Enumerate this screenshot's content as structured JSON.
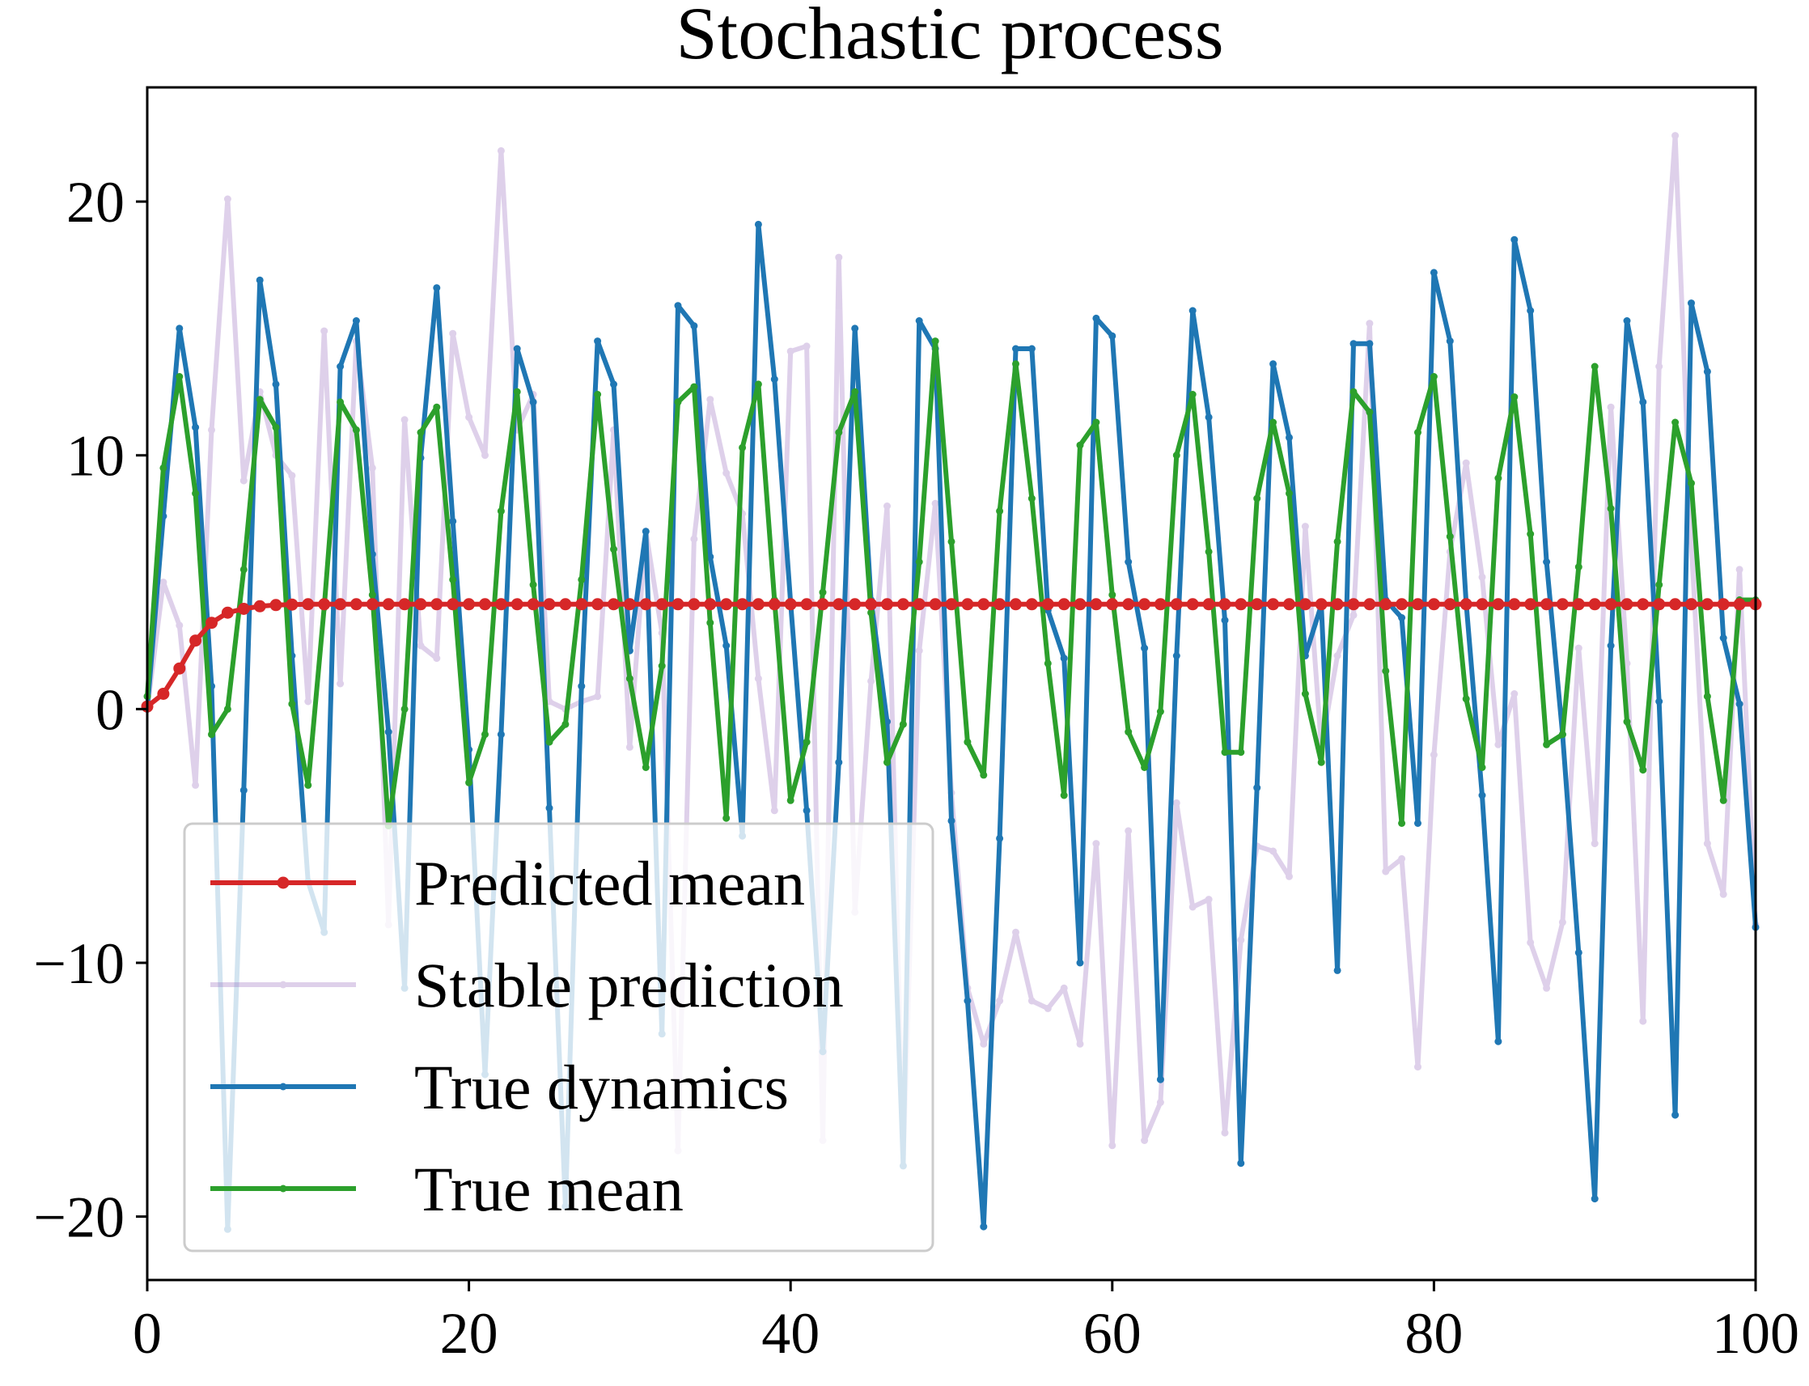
{
  "chart_data": {
    "type": "line",
    "title": "Stochastic process",
    "xlabel": "",
    "ylabel": "",
    "xlim": [
      0,
      100
    ],
    "ylim": [
      -22.5,
      24.5
    ],
    "x_ticks": [
      0,
      20,
      40,
      60,
      80,
      100
    ],
    "x_tick_labels": [
      "0",
      "20",
      "40",
      "60",
      "80",
      "100"
    ],
    "y_ticks": [
      20,
      10,
      0,
      -10,
      -20
    ],
    "y_tick_labels": [
      "20",
      "10",
      "0",
      "−10",
      "−20"
    ],
    "grid": false,
    "legend_position": "lower-left",
    "x": [
      0,
      1,
      2,
      3,
      4,
      5,
      6,
      7,
      8,
      9,
      10,
      11,
      12,
      13,
      14,
      15,
      16,
      17,
      18,
      19,
      20,
      21,
      22,
      23,
      24,
      25,
      26,
      27,
      28,
      29,
      30,
      31,
      32,
      33,
      34,
      35,
      36,
      37,
      38,
      39,
      40,
      41,
      42,
      43,
      44,
      45,
      46,
      47,
      48,
      49,
      50,
      51,
      52,
      53,
      54,
      55,
      56,
      57,
      58,
      59,
      60,
      61,
      62,
      63,
      64,
      65,
      66,
      67,
      68,
      69,
      70,
      71,
      72,
      73,
      74,
      75,
      76,
      77,
      78,
      79,
      80,
      81,
      82,
      83,
      84,
      85,
      86,
      87,
      88,
      89,
      90,
      91,
      92,
      93,
      94,
      95,
      96,
      97,
      98,
      99,
      100
    ],
    "series": [
      {
        "name": "Predicted mean",
        "color": "#d62728",
        "alpha": 1.0,
        "z": 4,
        "values": [
          0.1,
          0.6,
          1.6,
          2.7,
          3.4,
          3.8,
          3.95,
          4.05,
          4.1,
          4.12,
          4.13,
          4.13,
          4.13,
          4.13,
          4.13,
          4.13,
          4.13,
          4.13,
          4.13,
          4.13,
          4.13,
          4.13,
          4.13,
          4.13,
          4.13,
          4.13,
          4.13,
          4.13,
          4.13,
          4.13,
          4.13,
          4.13,
          4.13,
          4.13,
          4.13,
          4.13,
          4.13,
          4.13,
          4.13,
          4.13,
          4.13,
          4.13,
          4.13,
          4.13,
          4.13,
          4.13,
          4.13,
          4.13,
          4.13,
          4.13,
          4.13,
          4.13,
          4.13,
          4.13,
          4.13,
          4.13,
          4.13,
          4.13,
          4.13,
          4.13,
          4.13,
          4.13,
          4.13,
          4.13,
          4.13,
          4.13,
          4.13,
          4.13,
          4.13,
          4.13,
          4.13,
          4.13,
          4.13,
          4.13,
          4.13,
          4.13,
          4.13,
          4.13,
          4.13,
          4.13,
          4.13,
          4.13,
          4.13,
          4.13,
          4.13,
          4.13,
          4.13,
          4.13,
          4.13,
          4.13,
          4.13,
          4.13,
          4.13,
          4.13,
          4.13,
          4.13,
          4.13,
          4.13,
          4.13,
          4.13,
          4.13
        ]
      },
      {
        "name": "Stable prediction",
        "color": "#9467bd",
        "alpha": 0.3,
        "z": 1,
        "values": [
          0,
          5,
          3.3,
          -3,
          11,
          20.1,
          9,
          12.5,
          10,
          9.2,
          0.3,
          14.9,
          1.0,
          14.5,
          9.5,
          -8.5,
          11.4,
          2.5,
          2,
          14.8,
          11.5,
          10,
          22,
          11,
          12.4,
          0.3,
          0,
          0.3,
          0.5,
          11,
          -1.5,
          7,
          3,
          -17.4,
          6.7,
          12.2,
          9.3,
          7.7,
          1.2,
          -4,
          14.1,
          14.3,
          -17,
          17.8,
          -8,
          1.1,
          8,
          -18,
          2.3,
          8.1,
          -3.3,
          -11,
          -13.2,
          -11.5,
          -8.8,
          -11.5,
          -11.8,
          -11,
          -13.2,
          -5.3,
          -17.2,
          -4.8,
          -17,
          -15.5,
          -3.7,
          -7.8,
          -7.5,
          -16.7,
          -9.1,
          -5.4,
          -5.6,
          -6.6,
          7.2,
          -1.5,
          2.1,
          3.7,
          15.2,
          -6.4,
          -5.9,
          -14.1,
          -1.8,
          6.2,
          9.7,
          5.2,
          -1.4,
          0.6,
          -9.2,
          -11,
          -8.4,
          2.4,
          -5.3,
          11.9,
          1.8,
          -12.3,
          13.5,
          22.6,
          6.6,
          -5.3,
          -7.3,
          5.5,
          -8.5
        ]
      },
      {
        "name": "True dynamics",
        "color": "#1f77b4",
        "alpha": 1.0,
        "z": 2,
        "values": [
          0,
          7.6,
          15.0,
          11.1,
          0.9,
          -20.5,
          -3.2,
          16.9,
          12.8,
          2.1,
          -6.8,
          -8.8,
          13.5,
          15.3,
          6.1,
          -0.9,
          -11.0,
          9.9,
          16.6,
          7.4,
          -1.6,
          -14.4,
          -1.0,
          14.2,
          12.1,
          -3.9,
          -19.6,
          0.9,
          14.5,
          12.8,
          2.3,
          7.0,
          -12.8,
          15.9,
          15.1,
          6.0,
          2.5,
          -5.0,
          19.1,
          13.0,
          4.2,
          -4.0,
          -13.5,
          -2.1,
          15.0,
          4.3,
          -0.5,
          -18.0,
          15.3,
          14.2,
          -4.4,
          -11.5,
          -20.4,
          -5.1,
          14.2,
          14.2,
          3.9,
          2.0,
          -10.0,
          15.4,
          14.7,
          5.8,
          2.4,
          -14.6,
          2.1,
          15.7,
          11.5,
          3.5,
          -17.9,
          -3.1,
          13.6,
          10.7,
          2.1,
          4.1,
          -10.3,
          14.4,
          14.4,
          4.3,
          3.6,
          -4.5,
          17.2,
          14.5,
          4.2,
          -3.4,
          -13.1,
          18.5,
          15.7,
          5.8,
          -1.0,
          -9.6,
          -19.3,
          2.5,
          15.3,
          12.1,
          0.3,
          -16.0,
          16.0,
          13.3,
          2.8,
          0.2,
          -8.6
        ]
      },
      {
        "name": "True mean",
        "color": "#2ca02c",
        "alpha": 1.0,
        "z": 3,
        "values": [
          0.5,
          9.5,
          13.1,
          8.5,
          -1.0,
          0.0,
          5.5,
          12.2,
          11.1,
          0.2,
          -3.0,
          4.0,
          12.1,
          11.0,
          4.5,
          -4.6,
          0.0,
          10.9,
          11.9,
          5.1,
          -2.9,
          -1.0,
          7.8,
          12.5,
          4.9,
          -1.3,
          -0.6,
          5.1,
          12.4,
          6.3,
          1.2,
          -2.3,
          1.7,
          12.1,
          12.7,
          3.4,
          -4.3,
          10.3,
          12.8,
          4.3,
          -3.6,
          -1.3,
          4.6,
          10.9,
          12.5,
          3.8,
          -2.1,
          -0.6,
          5.8,
          14.5,
          6.6,
          -1.3,
          -2.6,
          7.8,
          13.6,
          8.3,
          1.8,
          -3.4,
          10.4,
          11.3,
          4.5,
          -0.9,
          -2.3,
          -0.1,
          10.0,
          12.4,
          6.2,
          -1.7,
          -1.7,
          8.3,
          11.3,
          8.5,
          0.6,
          -2.1,
          6.6,
          12.5,
          11.7,
          1.5,
          -4.5,
          10.9,
          13.1,
          6.8,
          0.4,
          -2.3,
          9.1,
          12.3,
          6.9,
          -1.4,
          -1.0,
          5.6,
          13.5,
          7.9,
          -0.5,
          -2.4,
          4.9,
          11.3,
          8.9,
          0.5,
          -3.6,
          4.3,
          4.3
        ]
      }
    ]
  }
}
